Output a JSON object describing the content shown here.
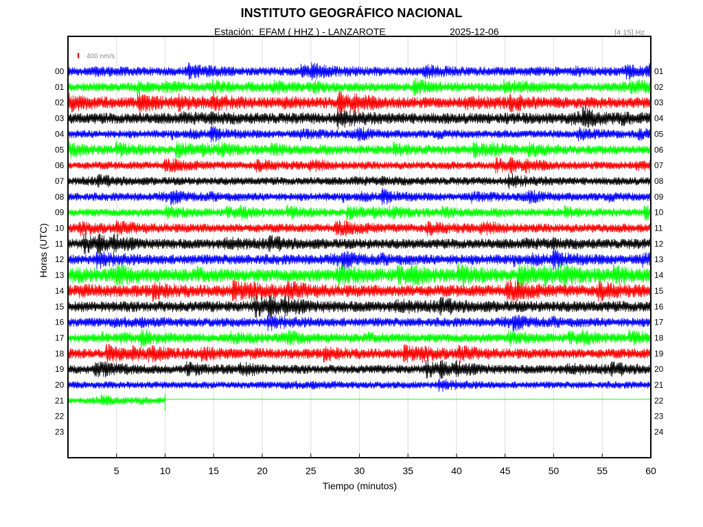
{
  "chart_data": {
    "type": "line",
    "title": "INSTITUTO GEOGRÁFICO NACIONAL",
    "subtitle": "Estación:  EFAM ( HHZ ) - LANZAROTE",
    "date": "2025-12-06",
    "filter_band": "[4 15] Hz",
    "scale_label": "400 nm/s",
    "xlabel": "Tiempo (minutos)",
    "ylabel": "Horas (UTC)",
    "xlim": [
      0,
      60
    ],
    "x_ticks": [
      "5",
      "10",
      "15",
      "20",
      "25",
      "30",
      "35",
      "40",
      "45",
      "50",
      "55",
      "60"
    ],
    "left_tick_labels": [
      "00",
      "01",
      "02",
      "03",
      "04",
      "05",
      "06",
      "07",
      "08",
      "09",
      "10",
      "11",
      "12",
      "13",
      "14",
      "15",
      "16",
      "17",
      "18",
      "19",
      "20",
      "21",
      "22",
      "23"
    ],
    "right_tick_labels": [
      "01",
      "02",
      "03",
      "04",
      "05",
      "06",
      "07",
      "08",
      "09",
      "10",
      "11",
      "12",
      "13",
      "14",
      "15",
      "16",
      "17",
      "18",
      "19",
      "20",
      "21",
      "22",
      "23",
      "24"
    ],
    "grid": true,
    "trace_colors": [
      "#0000ff",
      "#00ff00",
      "#ff0000",
      "#000000"
    ],
    "series": [
      {
        "hour": "00",
        "color_index": 0,
        "relative_amplitude": 0.9,
        "data_end_minute": 60
      },
      {
        "hour": "01",
        "color_index": 1,
        "relative_amplitude": 0.9,
        "data_end_minute": 60
      },
      {
        "hour": "02",
        "color_index": 2,
        "relative_amplitude": 1.1,
        "data_end_minute": 60
      },
      {
        "hour": "03",
        "color_index": 3,
        "relative_amplitude": 1.1,
        "data_end_minute": 60
      },
      {
        "hour": "04",
        "color_index": 0,
        "relative_amplitude": 0.8,
        "data_end_minute": 60
      },
      {
        "hour": "05",
        "color_index": 1,
        "relative_amplitude": 0.9,
        "data_end_minute": 60
      },
      {
        "hour": "06",
        "color_index": 2,
        "relative_amplitude": 0.8,
        "data_end_minute": 60
      },
      {
        "hour": "07",
        "color_index": 3,
        "relative_amplitude": 0.8,
        "data_end_minute": 60
      },
      {
        "hour": "08",
        "color_index": 0,
        "relative_amplitude": 0.8,
        "data_end_minute": 60
      },
      {
        "hour": "09",
        "color_index": 1,
        "relative_amplitude": 0.8,
        "data_end_minute": 60
      },
      {
        "hour": "10",
        "color_index": 2,
        "relative_amplitude": 0.9,
        "data_end_minute": 60
      },
      {
        "hour": "11",
        "color_index": 3,
        "relative_amplitude": 1.0,
        "data_end_minute": 60
      },
      {
        "hour": "12",
        "color_index": 0,
        "relative_amplitude": 1.0,
        "data_end_minute": 60
      },
      {
        "hour": "13",
        "color_index": 1,
        "relative_amplitude": 1.3,
        "data_end_minute": 60
      },
      {
        "hour": "14",
        "color_index": 2,
        "relative_amplitude": 1.2,
        "data_end_minute": 60
      },
      {
        "hour": "15",
        "color_index": 3,
        "relative_amplitude": 1.1,
        "data_end_minute": 60
      },
      {
        "hour": "16",
        "color_index": 0,
        "relative_amplitude": 0.9,
        "data_end_minute": 60
      },
      {
        "hour": "17",
        "color_index": 1,
        "relative_amplitude": 0.9,
        "data_end_minute": 60
      },
      {
        "hour": "18",
        "color_index": 2,
        "relative_amplitude": 1.0,
        "data_end_minute": 60
      },
      {
        "hour": "19",
        "color_index": 3,
        "relative_amplitude": 0.9,
        "data_end_minute": 60
      },
      {
        "hour": "20",
        "color_index": 0,
        "relative_amplitude": 0.7,
        "data_end_minute": 60
      },
      {
        "hour": "21",
        "color_index": 1,
        "relative_amplitude": 0.6,
        "data_end_minute": 10
      }
    ]
  }
}
